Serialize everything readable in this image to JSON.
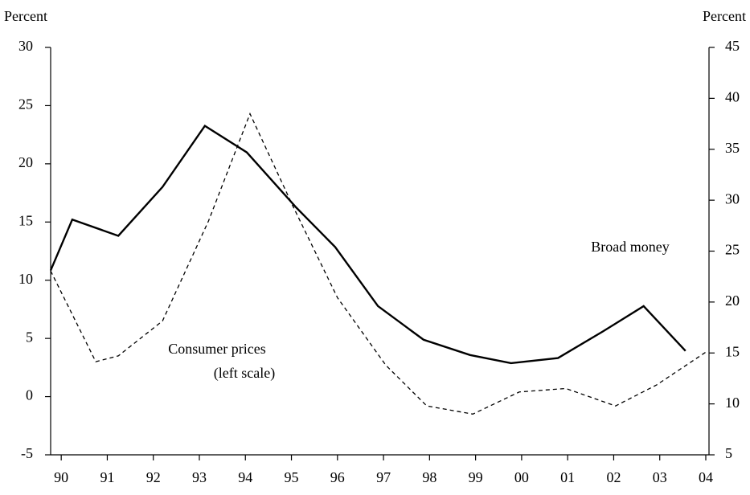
{
  "chart_data": {
    "type": "line",
    "y_label": "Percent",
    "y2_label": "Percent",
    "annotations": [
      "(left scale)"
    ],
    "xlim": [
      1989.77,
      2004.07
    ],
    "xticks": [
      {
        "value": 1990,
        "label": "90"
      },
      {
        "value": 1991,
        "label": "91"
      },
      {
        "value": 1992,
        "label": "92"
      },
      {
        "value": 1993,
        "label": "93"
      },
      {
        "value": 1994,
        "label": "94"
      },
      {
        "value": 1995,
        "label": "95"
      },
      {
        "value": 1996,
        "label": "96"
      },
      {
        "value": 1997,
        "label": "97"
      },
      {
        "value": 1998,
        "label": "98"
      },
      {
        "value": 1999,
        "label": "99"
      },
      {
        "value": 2000,
        "label": "00"
      },
      {
        "value": 2001,
        "label": "01"
      },
      {
        "value": 2002,
        "label": "02"
      },
      {
        "value": 2003,
        "label": "03"
      },
      {
        "value": 2004,
        "label": "04"
      }
    ],
    "ylim": [
      -5,
      30
    ],
    "yticks": [
      -5,
      0,
      5,
      10,
      15,
      20,
      25,
      30
    ],
    "y2lim": [
      5,
      45
    ],
    "y2ticks": [
      5,
      10,
      15,
      20,
      25,
      30,
      35,
      40,
      45
    ],
    "grid": false,
    "series": [
      {
        "name": "Consumer prices",
        "color": "#000000",
        "dash": true,
        "axis": "y",
        "x": [
          1989.77,
          1990.75,
          1991.24,
          1992.2,
          1993.2,
          1994.1,
          1995.04,
          1996.0,
          1997.05,
          1997.94,
          1998.94,
          1999.95,
          2000.96,
          2002.04,
          2002.93,
          2004.03
        ],
        "values": [
          10.8,
          3.0,
          3.5,
          6.5,
          15.1,
          24.3,
          16.3,
          8.5,
          2.7,
          -0.8,
          -1.5,
          0.4,
          0.7,
          -0.8,
          1.0,
          3.9
        ]
      },
      {
        "name": "Broad money",
        "color": "#000000",
        "dash": false,
        "axis": "y2",
        "x": [
          1989.77,
          1990.24,
          1991.24,
          1992.2,
          1993.12,
          1994.03,
          1995.1,
          1995.95,
          1996.88,
          1997.87,
          1998.88,
          1999.77,
          2000.79,
          2001.76,
          2002.65,
          2003.56
        ],
        "values": [
          23.1,
          28.1,
          26.5,
          31.3,
          37.3,
          34.7,
          29.3,
          25.4,
          19.6,
          16.3,
          14.8,
          14.0,
          14.5,
          17.1,
          19.6,
          15.2
        ]
      }
    ]
  }
}
